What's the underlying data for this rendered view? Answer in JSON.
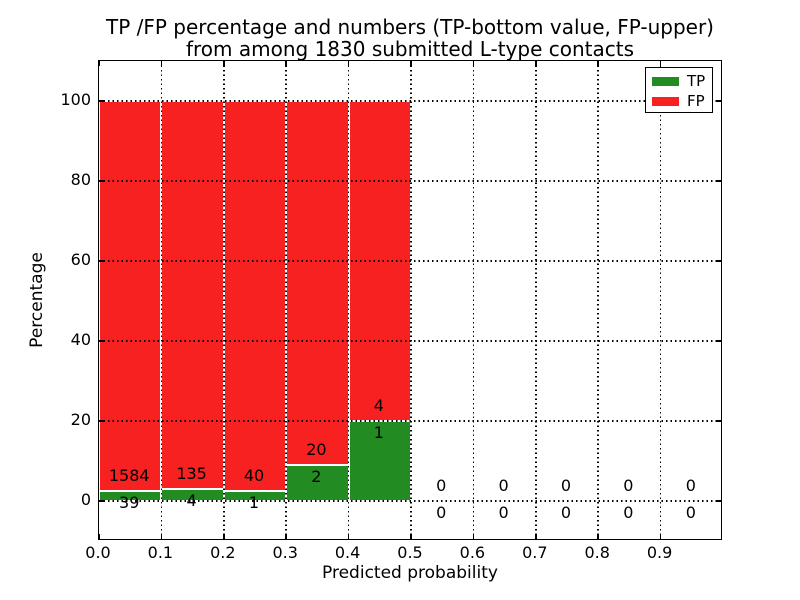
{
  "figure": {
    "background": "#ffffff",
    "text_color": "#000000"
  },
  "chart_data": {
    "type": "bar",
    "stacked": true,
    "title_line1": "TP /FP percentage and numbers (TP-bottom value, FP-upper)",
    "title_line2": "from among 1830 submitted L-type contacts",
    "total_contacts": 1830,
    "xlabel": "Predicted probability",
    "ylabel": "Percentage",
    "xlim": [
      0.0,
      1.0
    ],
    "ylim": [
      -10,
      110
    ],
    "bin_width": 0.1,
    "x_tick_labels": [
      "0.0",
      "0.1",
      "0.2",
      "0.3",
      "0.4",
      "0.5",
      "0.6",
      "0.7",
      "0.8",
      "0.9"
    ],
    "y_tick_values": [
      0,
      20,
      40,
      60,
      80,
      100
    ],
    "grid": {
      "style": "dotted",
      "color": "#000000",
      "above_bars": true
    },
    "bins": [
      {
        "range": "0.0-0.1",
        "x_start": 0.0,
        "tp": 39,
        "fp": 1584
      },
      {
        "range": "0.1-0.2",
        "x_start": 0.1,
        "tp": 4,
        "fp": 135
      },
      {
        "range": "0.2-0.3",
        "x_start": 0.2,
        "tp": 1,
        "fp": 40
      },
      {
        "range": "0.3-0.4",
        "x_start": 0.3,
        "tp": 2,
        "fp": 20
      },
      {
        "range": "0.4-0.5",
        "x_start": 0.4,
        "tp": 1,
        "fp": 4
      },
      {
        "range": "0.5-0.6",
        "x_start": 0.5,
        "tp": 0,
        "fp": 0
      },
      {
        "range": "0.6-0.7",
        "x_start": 0.6,
        "tp": 0,
        "fp": 0
      },
      {
        "range": "0.7-0.8",
        "x_start": 0.7,
        "tp": 0,
        "fp": 0
      },
      {
        "range": "0.8-0.9",
        "x_start": 0.8,
        "tp": 0,
        "fp": 0
      },
      {
        "range": "0.9-1.0",
        "x_start": 0.9,
        "tp": 0,
        "fp": 0
      }
    ],
    "series": [
      {
        "name": "TP",
        "color": "#228b22"
      },
      {
        "name": "FP",
        "color": "#f82121"
      }
    ],
    "legend": {
      "position": "upper right",
      "entries": [
        "TP",
        "FP"
      ]
    }
  }
}
